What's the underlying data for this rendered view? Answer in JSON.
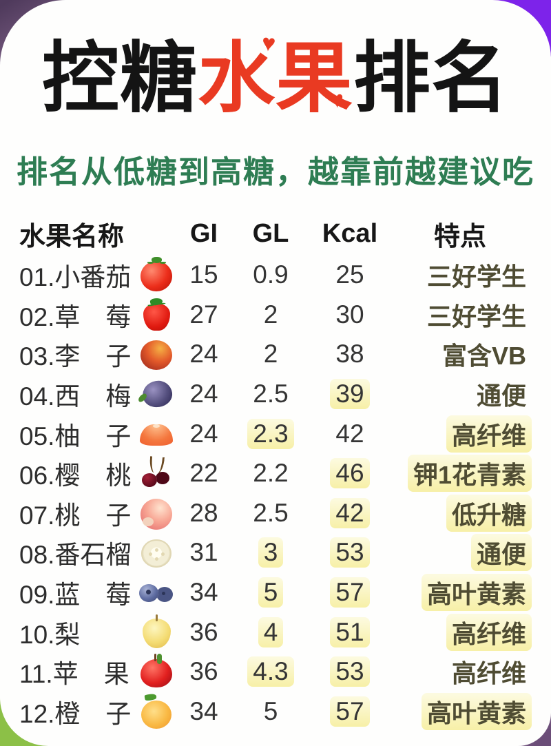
{
  "title": {
    "part1": "控糖",
    "part2": "水果",
    "part3": "排名",
    "heart_glyph": "♥"
  },
  "subtitle": "排名从低糖到高糖，越靠前越建议吃",
  "table": {
    "headers": {
      "name": "水果名称",
      "gi": "GI",
      "gl": "GL",
      "kcal": "Kcal",
      "feature": "特点"
    },
    "rows": [
      {
        "name": "01.小番茄",
        "icon": "tomato-icon",
        "gi": "15",
        "gl": "0.9",
        "kcal": "25",
        "feature": "三好学生",
        "hl": ""
      },
      {
        "name": "02.草　莓",
        "icon": "strawberry-icon",
        "gi": "27",
        "gl": "2",
        "kcal": "30",
        "feature": "三好学生",
        "hl": ""
      },
      {
        "name": "03.李　子",
        "icon": "plum-icon",
        "gi": "24",
        "gl": "2",
        "kcal": "38",
        "feature": "富含VB",
        "hl": ""
      },
      {
        "name": "04.西　梅",
        "icon": "prune-icon",
        "gi": "24",
        "gl": "2.5",
        "kcal": "39",
        "feature": "通便",
        "hl": "kcal"
      },
      {
        "name": "05.柚　子",
        "icon": "pomelo-icon",
        "gi": "24",
        "gl": "2.3",
        "kcal": "42",
        "feature": "高纤维",
        "hl": "gl feat"
      },
      {
        "name": "06.樱　桃",
        "icon": "cherry-icon",
        "gi": "22",
        "gl": "2.2",
        "kcal": "46",
        "feature": "钾1花青素",
        "hl": "kcal feat"
      },
      {
        "name": "07.桃　子",
        "icon": "peach-icon",
        "gi": "28",
        "gl": "2.5",
        "kcal": "42",
        "feature": "低升糖",
        "hl": "kcal feat"
      },
      {
        "name": "08.番石榴",
        "icon": "guava-icon",
        "gi": "31",
        "gl": "3",
        "kcal": "53",
        "feature": "通便",
        "hl": "gl kcal feat"
      },
      {
        "name": "09.蓝　莓",
        "icon": "blueberry-icon",
        "gi": "34",
        "gl": "5",
        "kcal": "57",
        "feature": "高叶黄素",
        "hl": "gl kcal feat"
      },
      {
        "name": "10.梨",
        "icon": "pear-icon",
        "gi": "36",
        "gl": "4",
        "kcal": "51",
        "feature": "高纤维",
        "hl": "gl kcal feat"
      },
      {
        "name": "11.苹　果",
        "icon": "apple-icon",
        "gi": "36",
        "gl": "4.3",
        "kcal": "53",
        "feature": "高纤维",
        "hl": "gl kcal"
      },
      {
        "name": "12.橙　子",
        "icon": "orange-icon",
        "gi": "34",
        "gl": "5",
        "kcal": "57",
        "feature": "高叶黄素",
        "hl": "kcal feat"
      }
    ]
  },
  "colors": {
    "title_black": "#141414",
    "title_red": "#E93A22",
    "subtitle_green": "#2E7D53",
    "feature_olive": "#4F4C33",
    "highlight_yellow": "#F2E66E",
    "corner_purple_bright": "#7D23EA",
    "corner_purple_muted": "#6B4D78",
    "corner_green": "#8CC047"
  }
}
